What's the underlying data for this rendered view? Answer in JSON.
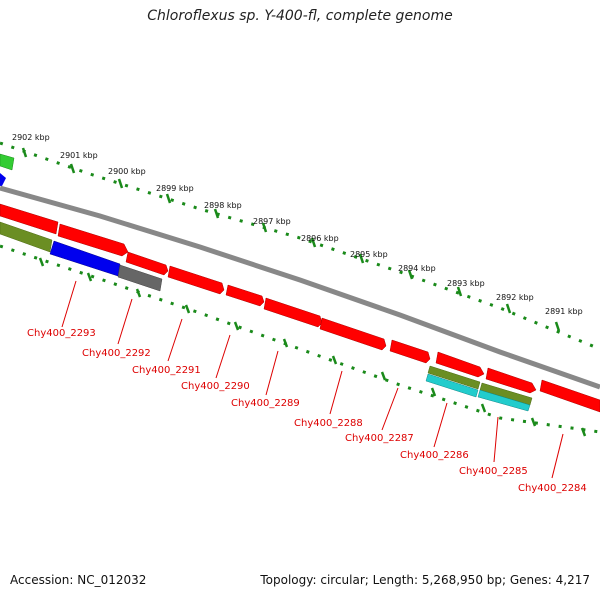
{
  "title": "Chloroflexus sp. Y-400-fl, complete genome",
  "footer": {
    "accession": "Accession: NC_012032",
    "topology": "Topology: circular; Length: 5,268,950 bp; Genes: 4,217"
  },
  "colors": {
    "backbone": "#888888",
    "tick": "#1a8a1a",
    "label_red": "#dd0000",
    "gene_red": "#ff0000",
    "gene_olive": "#6b8e23",
    "gene_blue": "#0000ee",
    "gene_gray": "#666666",
    "gene_green": "#33cc33",
    "gene_cyan": "#22cccc"
  },
  "kbp_labels": [
    "2902 kbp",
    "2901 kbp",
    "2900 kbp",
    "2899 kbp",
    "2898 kbp",
    "2897 kbp",
    "2896 kbp",
    "2895 kbp",
    "2894 kbp",
    "2893 kbp",
    "2892 kbp",
    "2891 kbp"
  ],
  "gene_labels": [
    "Chy400_2293",
    "Chy400_2292",
    "Chy400_2291",
    "Chy400_2290",
    "Chy400_2289",
    "Chy400_2288",
    "Chy400_2287",
    "Chy400_2286",
    "Chy400_2285",
    "Chy400_2284"
  ]
}
